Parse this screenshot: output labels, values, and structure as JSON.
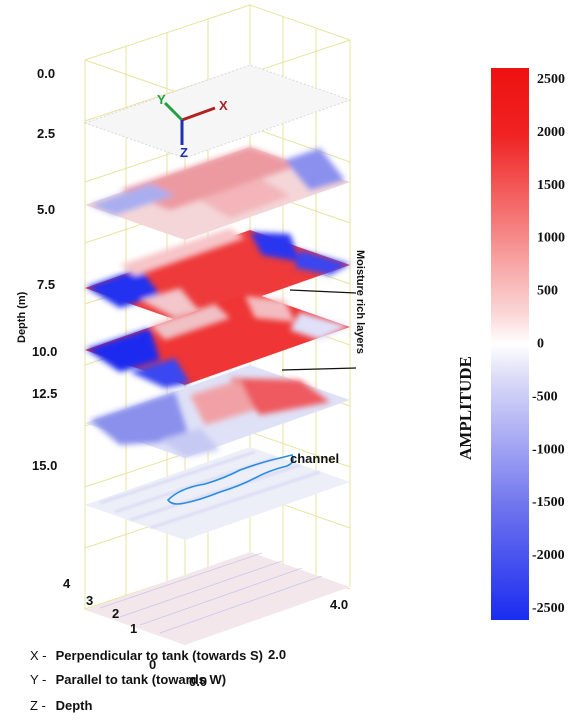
{
  "depth_ticks": [
    "0.0",
    "2.5",
    "5.0",
    "7.5",
    "10.0",
    "12.5",
    "15.0"
  ],
  "depth_label": "Depth (m)",
  "y_ticks": [
    "4",
    "3",
    "2",
    "1",
    "0"
  ],
  "x_ticks": [
    "0.0",
    "2.0",
    "4.0"
  ],
  "axis_triad": {
    "x": "X",
    "y": "Y",
    "z": "Z"
  },
  "annotations": {
    "moisture": "Moisture rich layers",
    "channel": "channel"
  },
  "colorbar": {
    "title": "AMPLITUDE",
    "labels": [
      "2500",
      "2000",
      "1500",
      "1000",
      "500",
      "0",
      "-500",
      "-1000",
      "-1500",
      "-2000",
      "-2500"
    ],
    "colors": {
      "high": "#ee1111",
      "mid": "#ffffff",
      "low": "#1a2cf0"
    }
  },
  "legend": [
    {
      "key": "X -",
      "text": "Perpendicular to tank (towards S)"
    },
    {
      "key": "Y -",
      "text": "Parallel to  tank (towards W)"
    },
    {
      "key": "Z -",
      "text": "Depth"
    }
  ]
}
